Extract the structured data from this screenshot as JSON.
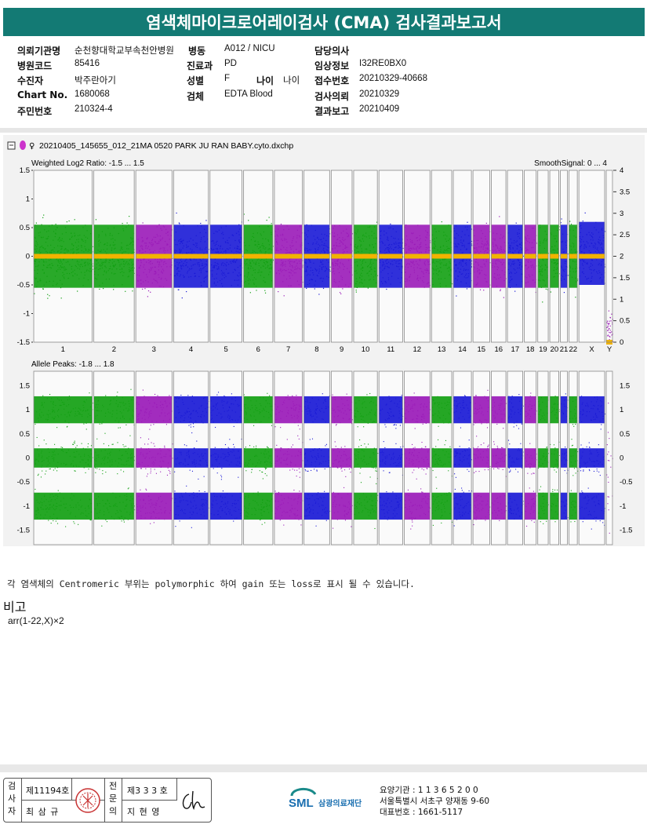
{
  "title": "염색체마이크로어레이검사 (CMA) 검사결과보고서",
  "header": {
    "institution_label": "의뢰기관명",
    "institution_value": "순천향대학교부속천안병원",
    "ward_label": "병동",
    "ward_value": "A012 / NICU",
    "physician_label": "담당의사",
    "physician_value": "",
    "hospital_code_label": "병원코드",
    "hospital_code_value": "85416",
    "department_label": "진료과",
    "department_value": "PD",
    "clinical_info_label": "임상정보",
    "clinical_info_value": "I32RE0BX0",
    "patient_label": "수진자",
    "patient_value": "박주란아기",
    "sex_label": "성별",
    "sex_value": "F",
    "age_label": "나이",
    "age_value": "나이",
    "reception_label": "접수번호",
    "reception_value": "20210329-40668",
    "chart_label": "Chart No.",
    "chart_value": "1680068",
    "specimen_label": "검체",
    "specimen_value": "EDTA Blood",
    "request_label": "검사의뢰",
    "request_value": "20210329",
    "resident_label": "주민번호",
    "resident_value": "210324-4",
    "report_label": "결과보고",
    "report_value": "20210409"
  },
  "plot": {
    "filename": "20210405_145655_012_21MA 0520 PARK JU RAN BABY.cyto.dxchp",
    "top_label": "Weighted Log2 Ratio: -1.5 ... 1.5",
    "top_right_label": "SmoothSignal: 0 ... 4",
    "bottom_label": "Allele Peaks: -1.8 ... 1.8",
    "colors": {
      "green": "#12a012",
      "blue": "#1a1ad6",
      "purple": "#9a1ab8",
      "orange": "#f2b300"
    }
  },
  "chart_data": [
    {
      "type": "scatter",
      "title": "Weighted Log2 Ratio: -1.5 ... 1.5",
      "ylim": [
        -1.5,
        1.5
      ],
      "y_ticks": [
        "1.5",
        "1",
        "0.5",
        "0",
        "-0.5",
        "-1",
        "-1.5"
      ],
      "y2_label": "SmoothSignal: 0 ... 4",
      "y2_ticks": [
        "4",
        "3.5",
        "3",
        "2.5",
        "2",
        "1.5",
        "1",
        "0.5",
        "0"
      ],
      "categories": [
        "1",
        "2",
        "3",
        "4",
        "5",
        "6",
        "7",
        "8",
        "9",
        "10",
        "11",
        "12",
        "13",
        "14",
        "15",
        "16",
        "17",
        "18",
        "19",
        "20",
        "21",
        "22",
        "X",
        "Y"
      ],
      "weighted_log2_center": [
        0,
        0,
        0,
        0,
        0,
        0,
        0,
        0,
        0,
        0,
        0,
        0,
        0,
        0,
        0,
        0,
        0,
        0,
        0,
        0,
        0,
        0,
        0.05,
        -1.3
      ],
      "smooth_signal": [
        2,
        2,
        2,
        2,
        2,
        2,
        2,
        2,
        2,
        2,
        2,
        2,
        2,
        2,
        2,
        2,
        2,
        2,
        2,
        2,
        2,
        2,
        2,
        0
      ]
    },
    {
      "type": "scatter",
      "title": "Allele Peaks: -1.8 ... 1.8",
      "ylim": [
        -1.8,
        1.8
      ],
      "y_ticks": [
        "1.5",
        "1",
        "0.5",
        "0",
        "-0.5",
        "-1",
        "-1.5"
      ],
      "categories": [
        "1",
        "2",
        "3",
        "4",
        "5",
        "6",
        "7",
        "8",
        "9",
        "10",
        "11",
        "12",
        "13",
        "14",
        "15",
        "16",
        "17",
        "18",
        "19",
        "20",
        "21",
        "22",
        "X",
        "Y"
      ],
      "peaks": [
        1,
        0,
        -1
      ]
    }
  ],
  "note": "각 염색체의 Centromeric 부위는 polymorphic 하여 gain 또는 loss로 표시 될 수 있습니다.",
  "remark_label": "비고",
  "remark_value": "arr(1-22,X)×2",
  "footer": {
    "examiner_label": "검사자",
    "examiner_no": "제11194호",
    "examiner_name": "최 삼 규",
    "specialist_label": "전문의",
    "specialist_no": "제3 3 3 호",
    "specialist_name": "지 현 영",
    "logo_text": "SML",
    "org_name": "삼광의료재단",
    "agency_no": "요양기관 : 1 1 3 6 5 2 0 0",
    "address": "서울특별시 서초구 양재동 9-60",
    "phone": "대표번호 : 1661-5117"
  }
}
